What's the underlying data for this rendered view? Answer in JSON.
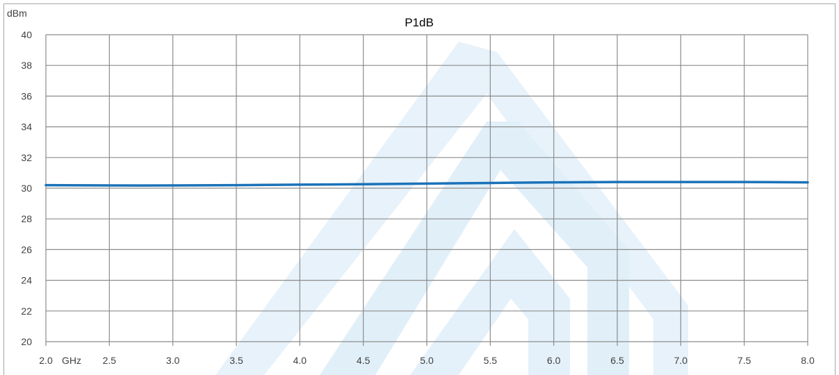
{
  "chart_data": {
    "type": "line",
    "title": "P1dB",
    "ylabel": "dBm",
    "xunit": "GHz",
    "xlim": [
      2.0,
      8.0
    ],
    "ylim": [
      20,
      40
    ],
    "x_ticks": [
      "2.0",
      "2.5",
      "3.0",
      "3.5",
      "4.0",
      "4.5",
      "5.0",
      "5.5",
      "6.0",
      "6.5",
      "7.0",
      "7.5",
      "8.0"
    ],
    "y_ticks": [
      "20",
      "22",
      "24",
      "26",
      "28",
      "30",
      "32",
      "34",
      "36",
      "38",
      "40"
    ],
    "grid": true,
    "series": [
      {
        "color": "#1b72b8",
        "x": [
          2.0,
          2.5,
          3.0,
          3.5,
          4.0,
          4.5,
          5.0,
          5.5,
          6.0,
          6.5,
          7.0,
          7.5,
          8.0
        ],
        "y": [
          30.2,
          30.18,
          30.18,
          30.2,
          30.23,
          30.26,
          30.3,
          30.34,
          30.38,
          30.4,
          30.4,
          30.4,
          30.38
        ]
      }
    ]
  },
  "colors": {
    "line": "#1b72b8",
    "grid": "#8c8c8c",
    "watermark": "#dfeef9"
  },
  "watermark": {
    "icon": "logo-watermark-icon"
  }
}
